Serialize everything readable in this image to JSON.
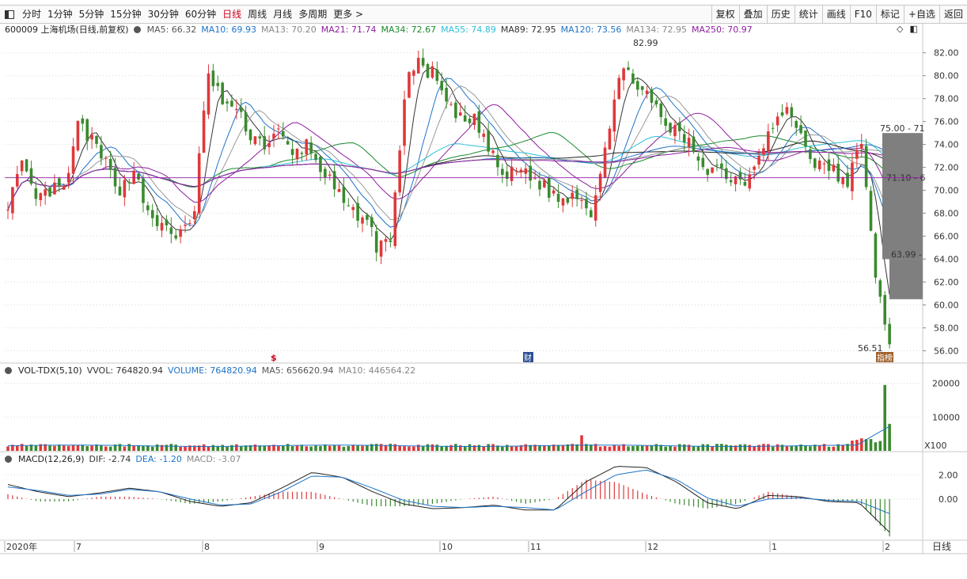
{
  "toolbar": {
    "periods": [
      "分时",
      "1分钟",
      "5分钟",
      "15分钟",
      "30分钟",
      "60分钟",
      "日线",
      "周线",
      "月线",
      "多周期",
      "更多 >"
    ],
    "active_period": "日线",
    "right_buttons": [
      "复权",
      "叠加",
      "历史",
      "统计",
      "画线",
      "F10",
      "标记",
      "+自选",
      "返回"
    ]
  },
  "price_legend": {
    "title": "600009 上海机场(日线,前复权)",
    "items": [
      {
        "label": "MA5: 66.32",
        "color": "#555555"
      },
      {
        "label": "MA10: 69.93",
        "color": "#1e73c8"
      },
      {
        "label": "MA13: 70.20",
        "color": "#888888"
      },
      {
        "label": "MA21: 71.74",
        "color": "#8e1e9e"
      },
      {
        "label": "MA34: 72.67",
        "color": "#1b8a2e"
      },
      {
        "label": "MA55: 74.89",
        "color": "#2bc0d8"
      },
      {
        "label": "MA89: 72.95",
        "color": "#333333"
      },
      {
        "label": "MA120: 73.56",
        "color": "#1e73c8"
      },
      {
        "label": "MA134: 72.95",
        "color": "#888888"
      },
      {
        "label": "MA250: 70.97",
        "color": "#8e1e9e"
      }
    ]
  },
  "vol_legend": {
    "title": "VOL-TDX(5,10)",
    "items": [
      {
        "label": "VVOL: 764820.94",
        "color": "#333333"
      },
      {
        "label": "VOLUME: 764820.94",
        "color": "#1e73c8"
      },
      {
        "label": "MA5: 656620.94",
        "color": "#555555"
      },
      {
        "label": "MA10: 446564.22",
        "color": "#888888"
      }
    ]
  },
  "macd_legend": {
    "title": "MACD(12,26,9)",
    "items": [
      {
        "label": "DIF: -2.74",
        "color": "#333333"
      },
      {
        "label": "DEA: -1.20",
        "color": "#1e73c8"
      },
      {
        "label": "MACD: -3.07",
        "color": "#888888"
      }
    ]
  },
  "chart_data": [
    {
      "type": "candlestick",
      "title": "600009 上海机场(日线,前复权)",
      "ylim": [
        55,
        83.5
      ],
      "y_ticks": [
        "82.00",
        "80.00",
        "78.00",
        "76.00",
        "74.00",
        "72.00",
        "70.00",
        "68.00",
        "66.00",
        "64.00",
        "62.00",
        "60.00",
        "58.00",
        "56.00"
      ],
      "x_labels": [
        "2020年",
        "7",
        "8",
        "9",
        "10",
        "11",
        "12",
        "1",
        "2"
      ],
      "annotations": {
        "high": "82.99",
        "low": "56.51",
        "range_top": "75.00 - 71",
        "range_mid": "71.10 - 6",
        "range_bot": "63.99 -"
      },
      "markers": [
        "$",
        "财",
        "指榜"
      ],
      "keypoints": [
        69,
        72,
        69,
        70,
        70,
        76,
        74,
        72,
        70,
        72,
        67,
        67,
        66,
        67,
        80,
        78,
        77,
        75,
        74,
        75,
        73,
        74,
        72,
        70,
        68,
        68,
        65,
        66,
        80,
        81,
        80,
        77,
        76,
        76,
        73,
        71,
        72,
        71,
        70,
        69,
        70,
        68,
        74,
        80,
        80,
        78,
        76,
        75,
        74,
        72,
        72,
        71,
        71,
        74,
        76,
        77,
        74,
        72,
        72,
        70,
        75,
        62,
        57
      ]
    },
    {
      "type": "bar",
      "title": "VOL-TDX(5,10)",
      "ylim": [
        0,
        22000
      ],
      "y_ticks": [
        "20000",
        "10000"
      ],
      "unit": "X100"
    },
    {
      "type": "bar",
      "title": "MACD(12,26,9)",
      "ylim": [
        -3.2,
        2.8
      ],
      "y_ticks": [
        "2.00",
        "0.00"
      ],
      "dif_keypoints": [
        1.2,
        0.6,
        0.2,
        0.5,
        0.9,
        0.6,
        -0.2,
        -0.6,
        -0.3,
        0.9,
        2.2,
        1.8,
        0.6,
        -0.4,
        -0.8,
        -0.7,
        -0.5,
        -0.9,
        -0.9,
        1.4,
        2.7,
        2.6,
        1.4,
        -0.3,
        -0.8,
        0.3,
        0.2,
        -0.2,
        -0.3,
        -2.74
      ],
      "dea_keypoints": [
        1.0,
        0.7,
        0.3,
        0.4,
        0.8,
        0.6,
        0.0,
        -0.5,
        -0.4,
        0.6,
        1.9,
        1.8,
        0.9,
        -0.1,
        -0.6,
        -0.7,
        -0.6,
        -0.7,
        -0.9,
        0.6,
        2.0,
        2.4,
        1.6,
        0.1,
        -0.6,
        0.0,
        0.1,
        -0.1,
        -0.2,
        -1.2
      ]
    }
  ],
  "bottom": {
    "period_label": "日线"
  }
}
